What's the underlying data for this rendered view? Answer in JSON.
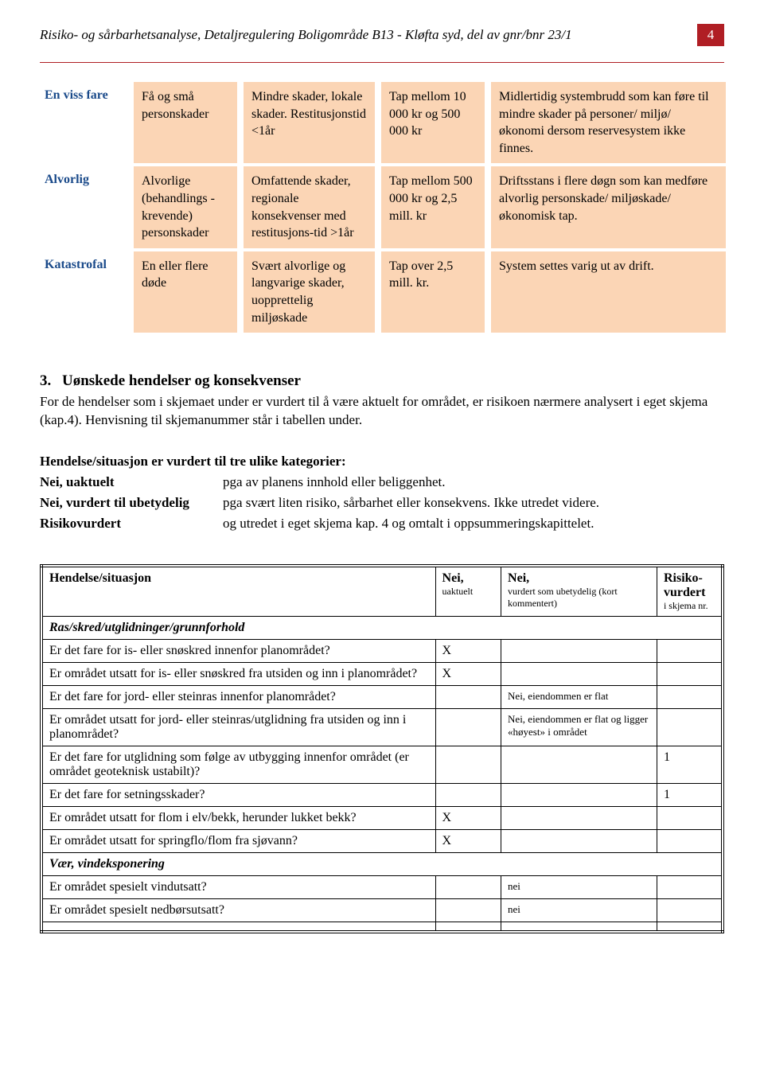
{
  "header": {
    "title": "Risiko- og sårbarhetsanalyse, Detaljregulering Boligområde B13 - Kløfta syd, del av gnr/bnr 23/1",
    "page": "4"
  },
  "conseq_table": {
    "rows": [
      {
        "label": "En viss fare",
        "c1": "Få og små personskader",
        "c2": "Mindre skader, lokale skader. Restitusjonstid <1år",
        "c3": "Tap mellom 10 000 kr og 500 000 kr",
        "c4": "Midlertidig systembrudd som kan føre til mindre skader på personer/ miljø/ økonomi dersom reservesystem ikke finnes."
      },
      {
        "label": "Alvorlig",
        "c1": "Alvorlige (behandlings -krevende) personskader",
        "c2": "Omfattende skader, regionale konsekvenser med restitusjons-tid >1år",
        "c3": "Tap mellom 500 000 kr og 2,5 mill. kr",
        "c4": "Driftsstans i flere døgn som kan medføre alvorlig personskade/ miljøskade/ økonomisk tap."
      },
      {
        "label": "Katastrofal",
        "c1": "En eller flere døde",
        "c2": "Svært alvorlige og langvarige skader, uopprettelig miljøskade",
        "c3": "Tap over 2,5 mill. kr.",
        "c4": "System settes varig ut av drift."
      }
    ]
  },
  "section3": {
    "number": "3.",
    "title": "Uønskede hendelser og konsekvenser",
    "intro": "For de hendelser som i skjemaet under er vurdert til å være aktuelt for området, er risikoen nærmere analysert i eget skjema (kap.4). Henvisning til skjemanummer står i tabellen under.",
    "cat_heading": "Hendelse/situasjon er vurdert til tre ulike kategorier:",
    "defs": [
      {
        "term": "Nei, uaktuelt",
        "desc": "pga av planens innhold eller beliggenhet."
      },
      {
        "term": "Nei, vurdert til ubetydelig",
        "desc": "pga svært liten risiko, sårbarhet eller konsekvens. Ikke utredet videre."
      },
      {
        "term": "Risikovurdert",
        "desc": "og utredet i eget skjema kap. 4 og omtalt i oppsummeringskapittelet."
      }
    ]
  },
  "big_table": {
    "headers": {
      "situation": "Hendelse/situasjon",
      "uaktuelt": "Nei,",
      "uaktuelt_sub": "uaktuelt",
      "ubetydelig": "Nei,",
      "ubetydelig_sub": "vurdert som ubetydelig (kort kommentert)",
      "risiko": "Risiko-vurdert",
      "risiko_sub": "i skjema nr."
    },
    "sections": [
      {
        "title": "Ras/skred/utglidninger/grunnforhold",
        "rows": [
          {
            "q": "Er det fare for is- eller snøskred innenfor planområdet?",
            "uaktuelt": "X",
            "ubetydelig": "",
            "risiko": ""
          },
          {
            "q": "Er området utsatt for is- eller snøskred fra utsiden og inn i planområdet?",
            "uaktuelt": "X",
            "ubetydelig": "",
            "risiko": ""
          },
          {
            "q": "Er det fare for jord- eller steinras innenfor planområdet?",
            "uaktuelt": "",
            "ubetydelig": "Nei, eiendommen er flat",
            "risiko": ""
          },
          {
            "q": "Er området utsatt for jord- eller steinras/utglidning fra utsiden og inn i planområdet?",
            "uaktuelt": "",
            "ubetydelig": "Nei, eiendommen er flat og ligger «høyest» i området",
            "risiko": ""
          },
          {
            "q": "Er det fare for utglidning som følge av utbygging innenfor området (er området geoteknisk ustabilt)?",
            "uaktuelt": "",
            "ubetydelig": "",
            "risiko": "1"
          },
          {
            "q": "Er det fare for setningsskader?",
            "uaktuelt": "",
            "ubetydelig": "",
            "risiko": "1"
          },
          {
            "q": "Er området utsatt for flom i elv/bekk, herunder lukket bekk?",
            "uaktuelt": "X",
            "ubetydelig": "",
            "risiko": ""
          },
          {
            "q": "Er området utsatt for springflo/flom fra sjøvann?",
            "uaktuelt": "X",
            "ubetydelig": "",
            "risiko": ""
          }
        ]
      },
      {
        "title": "Vær, vindeksponering",
        "rows": [
          {
            "q": "Er området spesielt vindutsatt?",
            "uaktuelt": "",
            "ubetydelig": "nei",
            "risiko": ""
          },
          {
            "q": "Er området spesielt nedbørsutsatt?",
            "uaktuelt": "",
            "ubetydelig": "nei",
            "risiko": ""
          }
        ]
      }
    ]
  }
}
